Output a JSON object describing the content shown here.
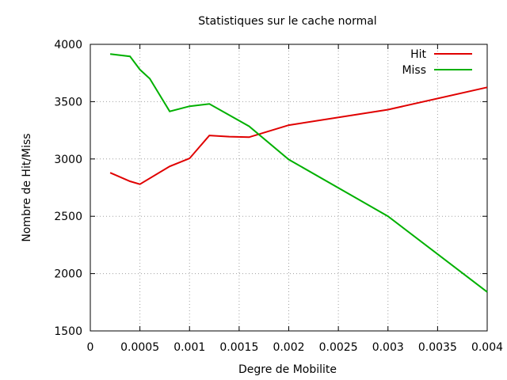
{
  "chart_data": {
    "type": "line",
    "title": "Statistiques sur le cache normal",
    "xlabel": "Degre de Mobilite",
    "ylabel": "Nombre de Hit/Miss",
    "xlim": [
      0,
      0.004
    ],
    "ylim": [
      1500,
      4000
    ],
    "x_ticks": [
      0,
      0.0005,
      0.001,
      0.0015,
      0.002,
      0.0025,
      0.003,
      0.0035,
      0.004
    ],
    "x_tick_labels": [
      "0",
      "0.0005",
      "0.001",
      "0.0015",
      "0.002",
      "0.0025",
      "0.003",
      "0.0035",
      "0.004"
    ],
    "y_ticks": [
      1500,
      2000,
      2500,
      3000,
      3500,
      4000
    ],
    "y_tick_labels": [
      "1500",
      "2000",
      "2500",
      "3000",
      "3500",
      "4000"
    ],
    "grid": true,
    "legend_position": "top-right",
    "series": [
      {
        "name": "Hit",
        "color": "#e00000",
        "x": [
          0.0002,
          0.0004,
          0.0005,
          0.0008,
          0.001,
          0.0012,
          0.0014,
          0.0016,
          0.002,
          0.003,
          0.004
        ],
        "y": [
          2880,
          2805,
          2780,
          2935,
          3005,
          3205,
          3195,
          3190,
          3295,
          3430,
          3625
        ]
      },
      {
        "name": "Miss",
        "color": "#00b000",
        "x": [
          0.0002,
          0.0004,
          0.0005,
          0.0006,
          0.0008,
          0.001,
          0.0012,
          0.0016,
          0.002,
          0.003,
          0.004
        ],
        "y": [
          3915,
          3895,
          3780,
          3700,
          3415,
          3460,
          3480,
          3285,
          2995,
          2500,
          1840
        ]
      }
    ]
  }
}
